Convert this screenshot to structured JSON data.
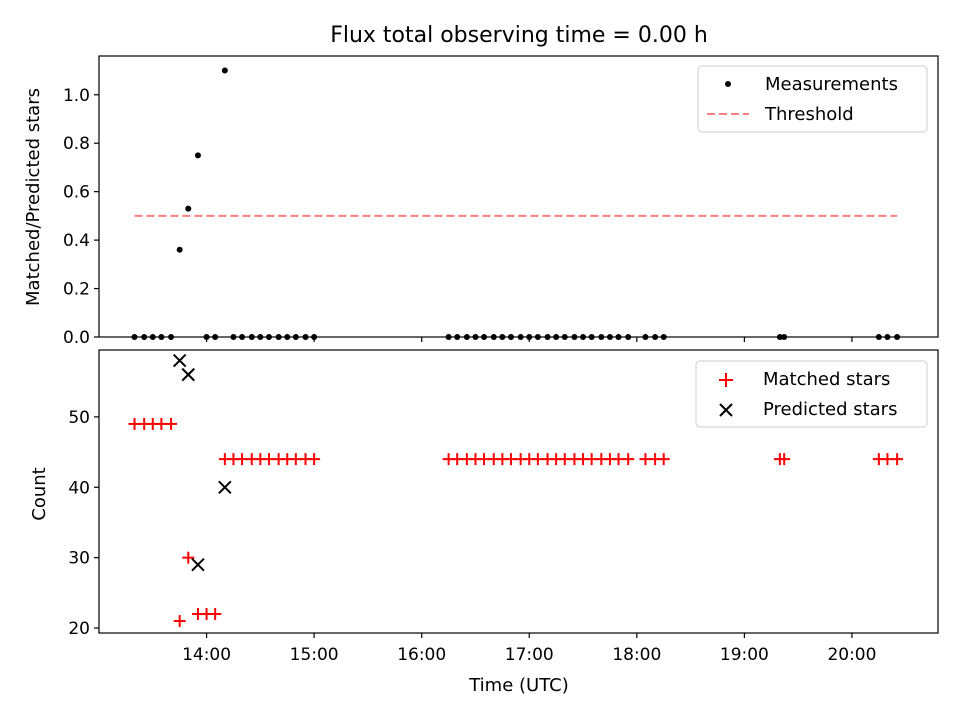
{
  "chart_data": {
    "title": "Flux total observing time = 0.00 h",
    "xlabel": "Time (UTC)",
    "x_unit": "hours UTC",
    "xlim": [
      13.0,
      20.8
    ],
    "x_ticks": [
      {
        "value": 14,
        "label": "14:00"
      },
      {
        "value": 15,
        "label": "15:00"
      },
      {
        "value": 16,
        "label": "16:00"
      },
      {
        "value": 17,
        "label": "17:00"
      },
      {
        "value": 18,
        "label": "18:00"
      },
      {
        "value": 19,
        "label": "19:00"
      },
      {
        "value": 20,
        "label": "20:00"
      }
    ],
    "top": {
      "type": "scatter",
      "ylabel": "Matched/Predicted stars",
      "ylim": [
        0,
        1.16
      ],
      "y_ticks": [
        0.0,
        0.2,
        0.4,
        0.6,
        0.8,
        1.0
      ],
      "y_tick_labels": [
        "0.0",
        "0.2",
        "0.4",
        "0.6",
        "0.8",
        "1.0"
      ],
      "threshold": {
        "name": "Threshold",
        "value": 0.5,
        "x_start": 13.33,
        "x_end": 20.42,
        "color": "#ff7f7f"
      },
      "measurements": {
        "name": "Measurements",
        "color": "#000000",
        "points": [
          [
            13.33,
            0
          ],
          [
            13.42,
            0
          ],
          [
            13.5,
            0
          ],
          [
            13.58,
            0
          ],
          [
            13.67,
            0
          ],
          [
            13.75,
            0.36
          ],
          [
            13.83,
            0.53
          ],
          [
            13.92,
            0.75
          ],
          [
            14.0,
            0
          ],
          [
            14.08,
            0
          ],
          [
            14.17,
            1.1
          ],
          [
            14.25,
            0
          ],
          [
            14.33,
            0
          ],
          [
            14.42,
            0
          ],
          [
            14.5,
            0
          ],
          [
            14.58,
            0
          ],
          [
            14.67,
            0
          ],
          [
            14.75,
            0
          ],
          [
            14.83,
            0
          ],
          [
            14.92,
            0
          ],
          [
            15.0,
            0
          ],
          [
            16.25,
            0
          ],
          [
            16.33,
            0
          ],
          [
            16.42,
            0
          ],
          [
            16.5,
            0
          ],
          [
            16.58,
            0
          ],
          [
            16.67,
            0
          ],
          [
            16.75,
            0
          ],
          [
            16.83,
            0
          ],
          [
            16.92,
            0
          ],
          [
            17.0,
            0
          ],
          [
            17.08,
            0
          ],
          [
            17.17,
            0
          ],
          [
            17.25,
            0
          ],
          [
            17.33,
            0
          ],
          [
            17.42,
            0
          ],
          [
            17.5,
            0
          ],
          [
            17.58,
            0
          ],
          [
            17.67,
            0
          ],
          [
            17.75,
            0
          ],
          [
            17.83,
            0
          ],
          [
            17.92,
            0
          ],
          [
            18.08,
            0
          ],
          [
            18.17,
            0
          ],
          [
            18.25,
            0
          ],
          [
            19.33,
            0
          ],
          [
            19.37,
            0
          ],
          [
            20.25,
            0
          ],
          [
            20.33,
            0
          ],
          [
            20.42,
            0
          ]
        ]
      },
      "legend": [
        "Measurements",
        "Threshold"
      ],
      "legend_position": "top-right"
    },
    "bottom": {
      "type": "scatter",
      "ylabel": "Count",
      "ylim": [
        19.3,
        59.5
      ],
      "y_ticks": [
        20,
        30,
        40,
        50
      ],
      "y_tick_labels": [
        "20",
        "30",
        "40",
        "50"
      ],
      "series": [
        {
          "name": "Matched stars",
          "marker": "+",
          "color": "#ff0000",
          "points": [
            [
              13.33,
              49
            ],
            [
              13.42,
              49
            ],
            [
              13.5,
              49
            ],
            [
              13.58,
              49
            ],
            [
              13.67,
              49
            ],
            [
              13.75,
              21
            ],
            [
              13.83,
              30
            ],
            [
              13.92,
              22
            ],
            [
              14.0,
              22
            ],
            [
              14.08,
              22
            ],
            [
              14.17,
              44
            ],
            [
              14.25,
              44
            ],
            [
              14.33,
              44
            ],
            [
              14.42,
              44
            ],
            [
              14.5,
              44
            ],
            [
              14.58,
              44
            ],
            [
              14.67,
              44
            ],
            [
              14.75,
              44
            ],
            [
              14.83,
              44
            ],
            [
              14.92,
              44
            ],
            [
              15.0,
              44
            ],
            [
              16.25,
              44
            ],
            [
              16.33,
              44
            ],
            [
              16.42,
              44
            ],
            [
              16.5,
              44
            ],
            [
              16.58,
              44
            ],
            [
              16.67,
              44
            ],
            [
              16.75,
              44
            ],
            [
              16.83,
              44
            ],
            [
              16.92,
              44
            ],
            [
              17.0,
              44
            ],
            [
              17.08,
              44
            ],
            [
              17.17,
              44
            ],
            [
              17.25,
              44
            ],
            [
              17.33,
              44
            ],
            [
              17.42,
              44
            ],
            [
              17.5,
              44
            ],
            [
              17.58,
              44
            ],
            [
              17.67,
              44
            ],
            [
              17.75,
              44
            ],
            [
              17.83,
              44
            ],
            [
              17.92,
              44
            ],
            [
              18.08,
              44
            ],
            [
              18.17,
              44
            ],
            [
              18.25,
              44
            ],
            [
              19.33,
              44
            ],
            [
              19.37,
              44
            ],
            [
              20.25,
              44
            ],
            [
              20.33,
              44
            ],
            [
              20.42,
              44
            ]
          ]
        },
        {
          "name": "Predicted stars",
          "marker": "x",
          "color": "#000000",
          "points": [
            [
              13.75,
              58
            ],
            [
              13.83,
              56
            ],
            [
              13.92,
              29
            ],
            [
              14.17,
              40
            ]
          ]
        }
      ],
      "legend": [
        "Matched stars",
        "Predicted stars"
      ],
      "legend_position": "top-right"
    }
  }
}
